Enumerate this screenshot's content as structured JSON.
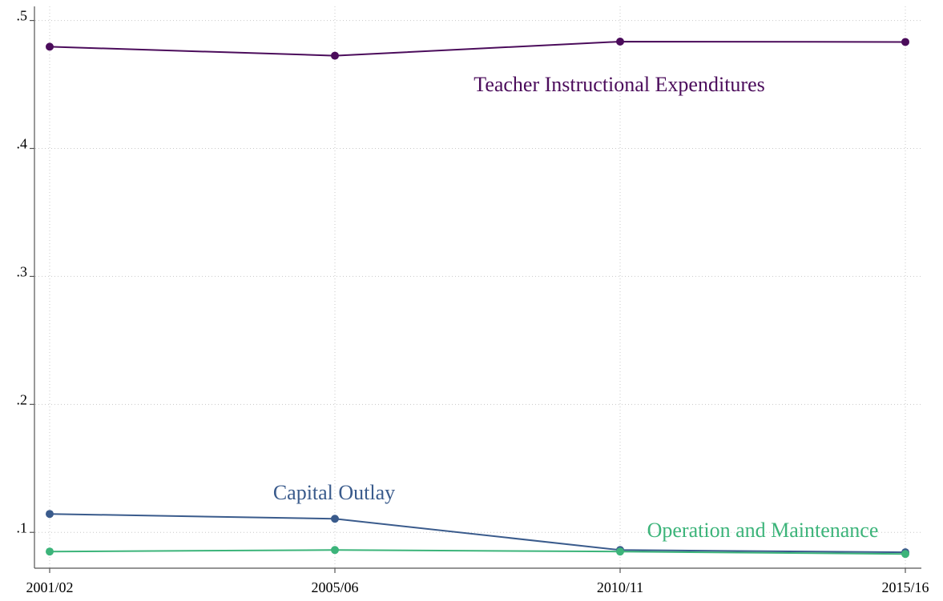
{
  "chart_data": {
    "type": "line",
    "categories": [
      "2001/02",
      "2005/06",
      "2010/11",
      "2015/16"
    ],
    "series": [
      {
        "name": "Teacher Instructional Expenditures",
        "color": "#4b0c5b",
        "values": [
          0.4795,
          0.4725,
          0.4835,
          0.4832
        ]
      },
      {
        "name": "Capital Outlay",
        "color": "#3a5b8c",
        "values": [
          0.1144,
          0.1106,
          0.0862,
          0.0844
        ]
      },
      {
        "name": "Operation and Maintenance",
        "color": "#3cb47a",
        "values": [
          0.085,
          0.0862,
          0.085,
          0.0831
        ]
      }
    ],
    "ylim": [
      0.072,
      0.511
    ],
    "yticks": [
      {
        "value": 0.1,
        "label": ".1"
      },
      {
        "value": 0.2,
        "label": ".2"
      },
      {
        "value": 0.3,
        "label": ".3"
      },
      {
        "value": 0.4,
        "label": ".4"
      },
      {
        "value": 0.5,
        "label": ".5"
      }
    ],
    "grid": true
  }
}
